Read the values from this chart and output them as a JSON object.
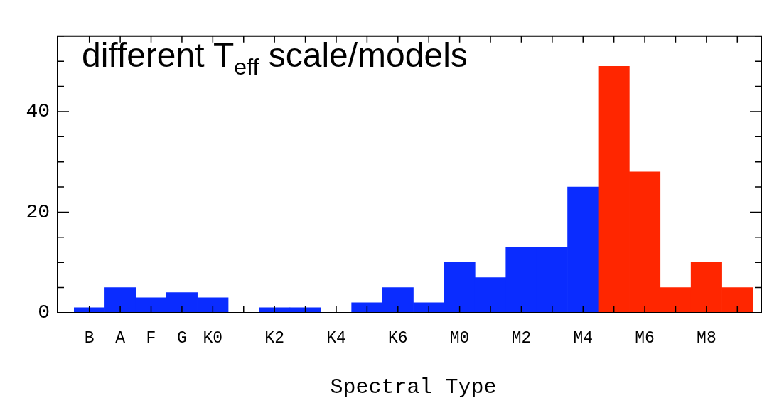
{
  "chart_data": {
    "type": "bar",
    "xlabel": "Spectral Type",
    "annotations": [
      "different T$_{eff}$ scale/models"
    ],
    "categories": [
      "B",
      "A",
      "F",
      "G",
      "K0",
      null,
      "K2",
      null,
      "K4",
      null,
      "K6",
      null,
      "M0",
      null,
      "M2",
      null,
      "M4",
      null,
      "M6",
      null,
      "M8",
      null
    ],
    "values": [
      1,
      5,
      3,
      4,
      3,
      0,
      1,
      1,
      0,
      2,
      5,
      2,
      10,
      7,
      13,
      13,
      25,
      49,
      28,
      5,
      10,
      5
    ],
    "colors": [
      "#0a2cff",
      "#0a2cff",
      "#0a2cff",
      "#0a2cff",
      "#0a2cff",
      "#0a2cff",
      "#0a2cff",
      "#0a2cff",
      "#0a2cff",
      "#0a2cff",
      "#0a2cff",
      "#0a2cff",
      "#0a2cff",
      "#0a2cff",
      "#0a2cff",
      "#0a2cff",
      "#0a2cff",
      "#ff2600",
      "#ff2600",
      "#ff2600",
      "#ff2600",
      "#ff2600"
    ],
    "ylim": [
      0,
      55
    ],
    "yticks": [
      0,
      {
        "value": 5,
        "label": null
      },
      {
        "value": 10,
        "label": null
      },
      {
        "value": 15,
        "label": null
      },
      20,
      {
        "value": 25,
        "label": null
      },
      {
        "value": 30,
        "label": null
      },
      {
        "value": 35,
        "label": null
      },
      40,
      {
        "value": 45,
        "label": null
      },
      {
        "value": 50,
        "label": null
      },
      {
        "value": 55,
        "label": null
      }
    ],
    "grid": false
  }
}
